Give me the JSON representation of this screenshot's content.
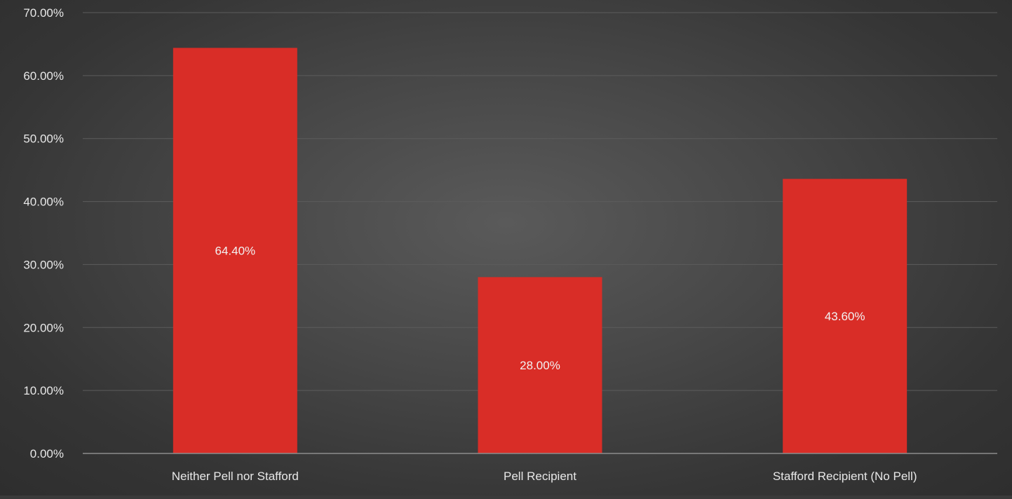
{
  "chart_data": {
    "type": "bar",
    "title": "",
    "xlabel": "",
    "ylabel": "",
    "categories": [
      "Neither Pell nor Stafford",
      "Pell Recipient",
      "Stafford Recipient (No Pell)"
    ],
    "values": [
      64.4,
      28.0,
      43.6
    ],
    "data_labels": [
      "64.40%",
      "28.00%",
      "43.60%"
    ],
    "ylim": [
      0,
      70
    ],
    "yticks": [
      0,
      10,
      20,
      30,
      40,
      50,
      60,
      70
    ],
    "ytick_labels": [
      "0.00%",
      "10.00%",
      "20.00%",
      "30.00%",
      "40.00%",
      "50.00%",
      "60.00%",
      "70.00%"
    ],
    "grid": true,
    "legend": "none",
    "colors": {
      "bar": "#d92d27",
      "grid": "#5c5c5c",
      "axis": "#8c8c8c",
      "tick_text": "#e8e8e8",
      "data_label_text": "#f2f2f2"
    }
  }
}
